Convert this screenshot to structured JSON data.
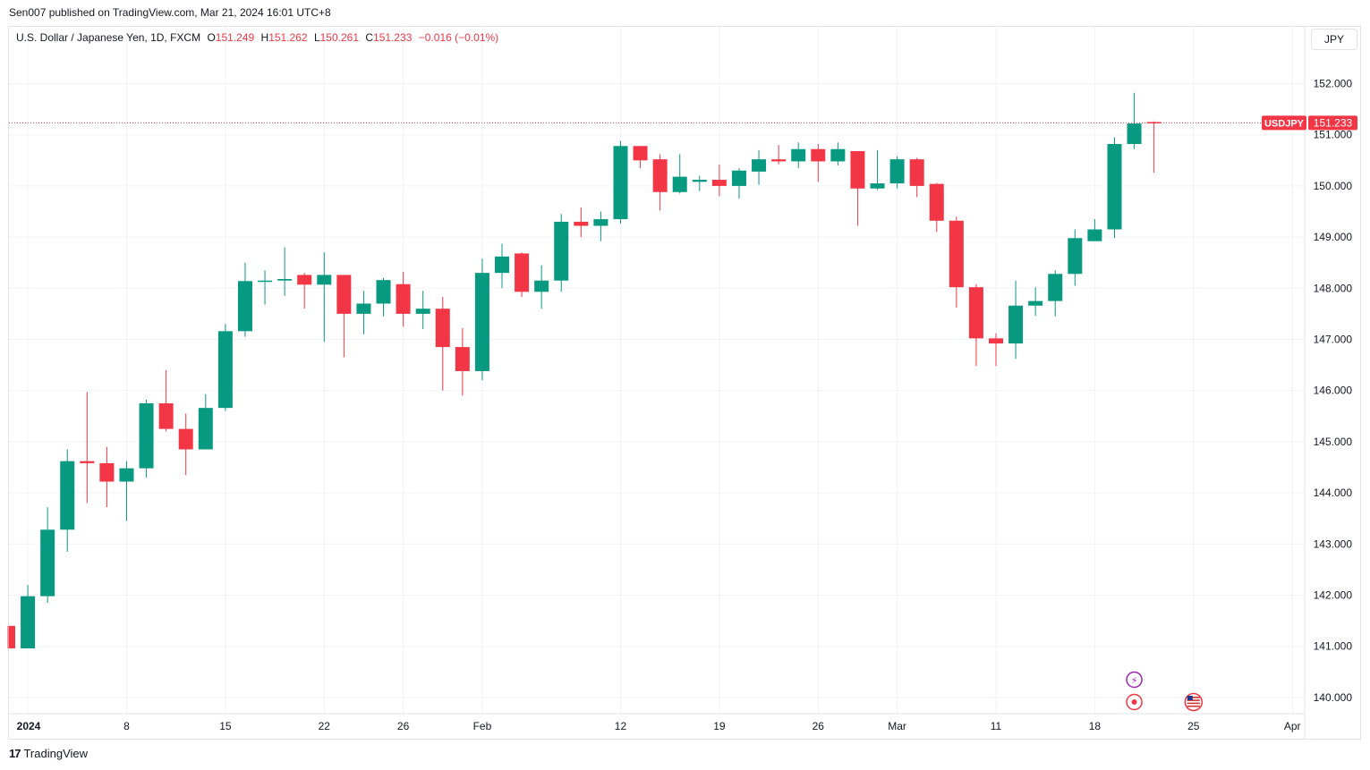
{
  "header": {
    "credit": "Sen007 published on TradingView.com, Mar 21, 2024 16:01 UTC+8"
  },
  "legend": {
    "symbol_desc": "U.S. Dollar / Japanese Yen, 1D, FXCM",
    "o_label": "O",
    "o_value": "151.249",
    "h_label": "H",
    "h_value": "151.262",
    "l_label": "L",
    "l_value": "150.261",
    "c_label": "C",
    "c_value": "151.233",
    "change": "−0.016 (−0.01%)"
  },
  "currency_button": "JPY",
  "price_tag": {
    "symbol": "USDJPY",
    "value": "151.233"
  },
  "footer": {
    "brand_logo": "17",
    "brand_name": "TradingView"
  },
  "colors": {
    "up": "#089981",
    "down": "#f23645",
    "grid": "#f0f3fa",
    "text": "#131722"
  },
  "chart_data": {
    "type": "candlestick",
    "interval": "1D",
    "ylim": [
      139.7,
      152.5
    ],
    "y_ticks": [
      140,
      141,
      142,
      143,
      144,
      145,
      146,
      147,
      148,
      149,
      150,
      151,
      152
    ],
    "y_tick_labels": [
      "140.000",
      "141.000",
      "142.000",
      "143.000",
      "144.000",
      "145.000",
      "146.000",
      "147.000",
      "148.000",
      "149.000",
      "150.000",
      "151.000",
      "152.000"
    ],
    "x_labels": [
      {
        "label": "2024",
        "bold": true,
        "day": 1
      },
      {
        "label": "8",
        "day": 6
      },
      {
        "label": "15",
        "day": 11
      },
      {
        "label": "22",
        "day": 16
      },
      {
        "label": "26",
        "day": 20
      },
      {
        "label": "Feb",
        "day": 24
      },
      {
        "label": "12",
        "day": 31
      },
      {
        "label": "19",
        "day": 36
      },
      {
        "label": "26",
        "day": 41
      },
      {
        "label": "Mar",
        "day": 45
      },
      {
        "label": "11",
        "day": 50
      },
      {
        "label": "18",
        "day": 55
      },
      {
        "label": "25",
        "day": 60
      },
      {
        "label": "Apr",
        "day": 65
      }
    ],
    "last_price": 151.233,
    "candles": [
      {
        "day": 0,
        "o": 141.4,
        "h": 141.4,
        "l": 140.96,
        "c": 140.96
      },
      {
        "day": 1,
        "o": 140.96,
        "h": 142.2,
        "l": 140.96,
        "c": 141.98
      },
      {
        "day": 2,
        "o": 141.98,
        "h": 143.72,
        "l": 141.85,
        "c": 143.28
      },
      {
        "day": 3,
        "o": 143.28,
        "h": 144.85,
        "l": 142.85,
        "c": 144.62
      },
      {
        "day": 4,
        "o": 144.62,
        "h": 145.97,
        "l": 143.8,
        "c": 144.58
      },
      {
        "day": 5,
        "o": 144.58,
        "h": 144.9,
        "l": 143.72,
        "c": 144.22
      },
      {
        "day": 6,
        "o": 144.22,
        "h": 144.62,
        "l": 143.45,
        "c": 144.48
      },
      {
        "day": 7,
        "o": 144.48,
        "h": 145.82,
        "l": 144.3,
        "c": 145.75
      },
      {
        "day": 8,
        "o": 145.75,
        "h": 146.4,
        "l": 145.2,
        "c": 145.25
      },
      {
        "day": 9,
        "o": 145.25,
        "h": 145.55,
        "l": 144.35,
        "c": 144.85
      },
      {
        "day": 10,
        "o": 144.85,
        "h": 145.93,
        "l": 144.85,
        "c": 145.66
      },
      {
        "day": 11,
        "o": 145.66,
        "h": 147.3,
        "l": 145.6,
        "c": 147.16
      },
      {
        "day": 12,
        "o": 147.16,
        "h": 148.5,
        "l": 147.05,
        "c": 148.14
      },
      {
        "day": 13,
        "o": 148.14,
        "h": 148.35,
        "l": 147.68,
        "c": 148.15
      },
      {
        "day": 14,
        "o": 148.15,
        "h": 148.8,
        "l": 147.85,
        "c": 148.18
      },
      {
        "day": 15,
        "o": 148.26,
        "h": 148.3,
        "l": 147.6,
        "c": 148.07
      },
      {
        "day": 16,
        "o": 148.07,
        "h": 148.7,
        "l": 146.95,
        "c": 148.26
      },
      {
        "day": 17,
        "o": 148.26,
        "h": 148.26,
        "l": 146.65,
        "c": 147.5
      },
      {
        "day": 18,
        "o": 147.5,
        "h": 147.95,
        "l": 147.1,
        "c": 147.7
      },
      {
        "day": 19,
        "o": 147.7,
        "h": 148.2,
        "l": 147.45,
        "c": 148.16
      },
      {
        "day": 20,
        "o": 148.08,
        "h": 148.32,
        "l": 147.25,
        "c": 147.5
      },
      {
        "day": 21,
        "o": 147.5,
        "h": 147.95,
        "l": 147.2,
        "c": 147.6
      },
      {
        "day": 22,
        "o": 147.6,
        "h": 147.83,
        "l": 146.0,
        "c": 146.85
      },
      {
        "day": 23,
        "o": 146.85,
        "h": 147.22,
        "l": 145.9,
        "c": 146.38
      },
      {
        "day": 24,
        "o": 146.38,
        "h": 148.58,
        "l": 146.2,
        "c": 148.3
      },
      {
        "day": 25,
        "o": 148.3,
        "h": 148.87,
        "l": 148.0,
        "c": 148.62
      },
      {
        "day": 26,
        "o": 148.68,
        "h": 148.7,
        "l": 147.83,
        "c": 147.93
      },
      {
        "day": 27,
        "o": 147.93,
        "h": 148.45,
        "l": 147.6,
        "c": 148.15
      },
      {
        "day": 28,
        "o": 148.15,
        "h": 149.45,
        "l": 147.93,
        "c": 149.3
      },
      {
        "day": 29,
        "o": 149.3,
        "h": 149.58,
        "l": 149.0,
        "c": 149.22
      },
      {
        "day": 30,
        "o": 149.22,
        "h": 149.5,
        "l": 148.92,
        "c": 149.35
      },
      {
        "day": 31,
        "o": 149.35,
        "h": 150.88,
        "l": 149.26,
        "c": 150.78
      },
      {
        "day": 32,
        "o": 150.78,
        "h": 150.78,
        "l": 150.35,
        "c": 150.5
      },
      {
        "day": 33,
        "o": 150.52,
        "h": 150.62,
        "l": 149.52,
        "c": 149.88
      },
      {
        "day": 34,
        "o": 149.88,
        "h": 150.62,
        "l": 149.85,
        "c": 150.18
      },
      {
        "day": 35,
        "o": 150.08,
        "h": 150.2,
        "l": 149.9,
        "c": 150.12
      },
      {
        "day": 36,
        "o": 150.12,
        "h": 150.42,
        "l": 149.8,
        "c": 150.0
      },
      {
        "day": 37,
        "o": 150.0,
        "h": 150.35,
        "l": 149.75,
        "c": 150.3
      },
      {
        "day": 38,
        "o": 150.28,
        "h": 150.7,
        "l": 150.02,
        "c": 150.52
      },
      {
        "day": 39,
        "o": 150.52,
        "h": 150.8,
        "l": 150.42,
        "c": 150.48
      },
      {
        "day": 40,
        "o": 150.48,
        "h": 150.85,
        "l": 150.35,
        "c": 150.72
      },
      {
        "day": 41,
        "o": 150.72,
        "h": 150.82,
        "l": 150.08,
        "c": 150.48
      },
      {
        "day": 42,
        "o": 150.48,
        "h": 150.85,
        "l": 150.4,
        "c": 150.72
      },
      {
        "day": 43,
        "o": 150.68,
        "h": 150.68,
        "l": 149.22,
        "c": 149.95
      },
      {
        "day": 44,
        "o": 149.95,
        "h": 150.7,
        "l": 149.92,
        "c": 150.05
      },
      {
        "day": 45,
        "o": 150.05,
        "h": 150.58,
        "l": 149.95,
        "c": 150.52
      },
      {
        "day": 46,
        "o": 150.52,
        "h": 150.55,
        "l": 149.78,
        "c": 150.0
      },
      {
        "day": 47,
        "o": 150.04,
        "h": 150.06,
        "l": 149.1,
        "c": 149.32
      },
      {
        "day": 48,
        "o": 149.32,
        "h": 149.4,
        "l": 147.62,
        "c": 148.02
      },
      {
        "day": 49,
        "o": 148.02,
        "h": 148.08,
        "l": 146.48,
        "c": 147.02
      },
      {
        "day": 50,
        "o": 147.02,
        "h": 147.12,
        "l": 146.48,
        "c": 146.92
      },
      {
        "day": 51,
        "o": 146.92,
        "h": 148.15,
        "l": 146.62,
        "c": 147.66
      },
      {
        "day": 52,
        "o": 147.66,
        "h": 148.02,
        "l": 147.46,
        "c": 147.75
      },
      {
        "day": 53,
        "o": 147.75,
        "h": 148.35,
        "l": 147.45,
        "c": 148.28
      },
      {
        "day": 54,
        "o": 148.28,
        "h": 149.15,
        "l": 148.05,
        "c": 148.98
      },
      {
        "day": 55,
        "o": 148.92,
        "h": 149.35,
        "l": 148.92,
        "c": 149.15
      },
      {
        "day": 56,
        "o": 149.15,
        "h": 150.95,
        "l": 148.98,
        "c": 150.82
      },
      {
        "day": 57,
        "o": 150.82,
        "h": 151.82,
        "l": 150.72,
        "c": 151.22
      },
      {
        "day": 58,
        "o": 151.249,
        "h": 151.262,
        "l": 150.261,
        "c": 151.233
      }
    ],
    "events": [
      {
        "day": 57,
        "kind": "dividend-flash",
        "symbol": "⚡",
        "color": "#9c27b0"
      },
      {
        "day": 57,
        "kind": "earnings-dot",
        "color": "#f23645"
      },
      {
        "day": 60,
        "kind": "us-economic-event",
        "color": "#f23645"
      }
    ]
  }
}
